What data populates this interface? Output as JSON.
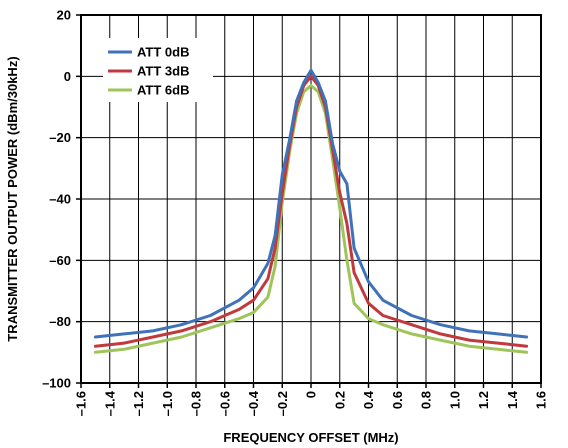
{
  "chart_data": {
    "type": "line",
    "xlabel": "FREQUENCY OFFSET (MHz)",
    "ylabel": "TRANSMITTER OUTPUT POWER (dBm/30kHz)",
    "xlim": [
      -1.6,
      1.6
    ],
    "ylim": [
      -100,
      20
    ],
    "xticks": [
      -1.6,
      -1.4,
      -1.2,
      -1.0,
      -0.8,
      -0.6,
      -0.4,
      -0.2,
      0,
      0.2,
      0.4,
      0.6,
      0.8,
      1.0,
      1.2,
      1.4,
      1.6
    ],
    "xtick_labels": [
      "–1.6",
      "–1.4",
      "–1.2",
      "–1.0",
      "–0.8",
      "–0.6",
      "–0.4",
      "–0.2",
      "0",
      "0.2",
      "0.4",
      "0.6",
      "0.8",
      "1.0",
      "1.2",
      "1.4",
      "1.6"
    ],
    "yticks": [
      -100,
      -80,
      -60,
      -40,
      -20,
      0,
      20
    ],
    "ytick_labels": [
      "–100",
      "–80",
      "–60",
      "–40",
      "–20",
      "0",
      "20"
    ],
    "grid": true,
    "legend_position": "top-left",
    "series": [
      {
        "name": "ATT 0dB",
        "color": "#3f72b9",
        "x": [
          -1.5,
          -1.3,
          -1.1,
          -0.9,
          -0.7,
          -0.5,
          -0.4,
          -0.3,
          -0.25,
          -0.2,
          -0.15,
          -0.1,
          -0.05,
          0,
          0.05,
          0.1,
          0.15,
          0.2,
          0.25,
          0.3,
          0.4,
          0.5,
          0.7,
          0.9,
          1.1,
          1.3,
          1.5
        ],
        "y": [
          -85,
          -84,
          -83,
          -81,
          -78,
          -73,
          -69,
          -61,
          -52,
          -32,
          -21,
          -8,
          -2,
          2,
          -2,
          -8,
          -22,
          -31,
          -35,
          -56,
          -67,
          -73,
          -78,
          -81,
          -83,
          -84,
          -85
        ]
      },
      {
        "name": "ATT 3dB",
        "color": "#c0393c",
        "x": [
          -1.5,
          -1.3,
          -1.1,
          -0.9,
          -0.7,
          -0.5,
          -0.4,
          -0.3,
          -0.25,
          -0.2,
          -0.15,
          -0.1,
          -0.05,
          0,
          0.05,
          0.1,
          0.15,
          0.2,
          0.25,
          0.3,
          0.4,
          0.5,
          0.7,
          0.9,
          1.1,
          1.3,
          1.5
        ],
        "y": [
          -88,
          -87,
          -85,
          -83,
          -80,
          -76,
          -73,
          -66,
          -56,
          -38,
          -23,
          -10,
          -3,
          0,
          -3,
          -10,
          -24,
          -38,
          -48,
          -64,
          -74,
          -78,
          -81,
          -84,
          -86,
          -87,
          -88
        ]
      },
      {
        "name": "ATT 6dB",
        "color": "#9fc45a",
        "x": [
          -1.5,
          -1.3,
          -1.1,
          -0.9,
          -0.7,
          -0.5,
          -0.4,
          -0.3,
          -0.25,
          -0.2,
          -0.15,
          -0.1,
          -0.05,
          0,
          0.05,
          0.1,
          0.15,
          0.2,
          0.25,
          0.3,
          0.4,
          0.5,
          0.7,
          0.9,
          1.1,
          1.3,
          1.5
        ],
        "y": [
          -90,
          -89,
          -87,
          -85,
          -82,
          -79,
          -77,
          -72,
          -62,
          -41,
          -25,
          -12,
          -5,
          -3,
          -5,
          -12,
          -27,
          -43,
          -60,
          -74,
          -79,
          -81,
          -84,
          -86,
          -88,
          -89,
          -90
        ]
      }
    ]
  }
}
